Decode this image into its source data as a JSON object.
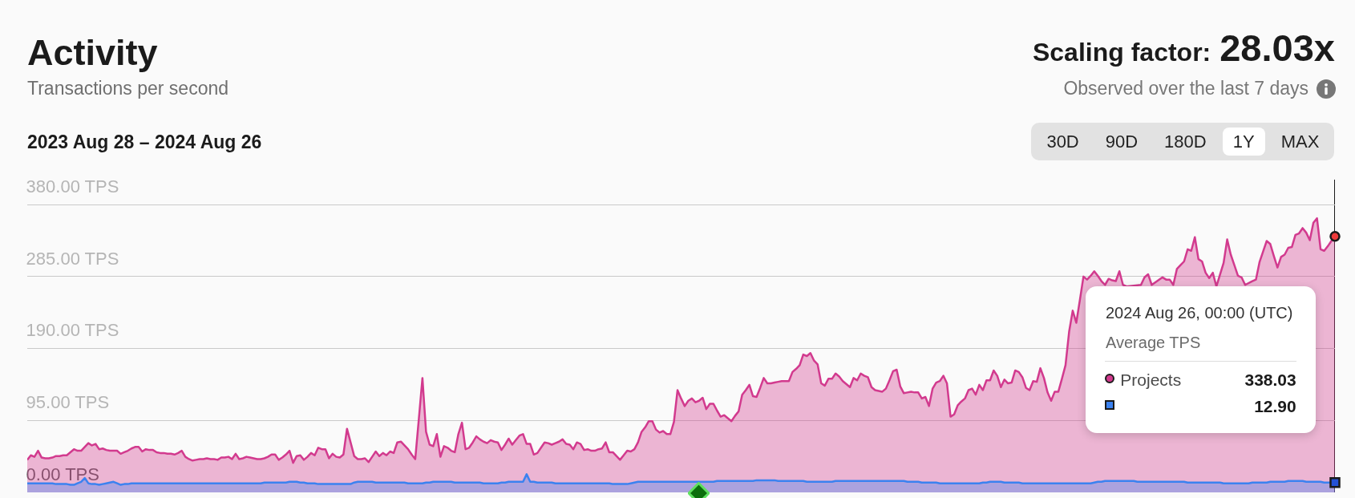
{
  "chart_data": {
    "type": "area",
    "title": "Activity",
    "subtitle": "Transactions per second",
    "annotations": [
      "2023 Aug 28 – 2024 Aug 26",
      "Scaling factor:",
      "28.03x",
      "Observed over the last 7 days",
      "30D",
      "90D",
      "180D",
      "1Y",
      "MAX",
      "2024 Aug 26, 00:00 (UTC)",
      "338.03",
      "12.90"
    ],
    "legend_title": "Average TPS",
    "categories": [
      null,
      null,
      null,
      null,
      null,
      null,
      null,
      null,
      null,
      null,
      null,
      null,
      null,
      null,
      null,
      null,
      null,
      null,
      null,
      null,
      null,
      null,
      null,
      null,
      null,
      null,
      null,
      null,
      null,
      null,
      null,
      null,
      null,
      null,
      null,
      null,
      null,
      null,
      null,
      null,
      null,
      null,
      null,
      null,
      null,
      null,
      null,
      null,
      null,
      null,
      null,
      null,
      null,
      null,
      null,
      null,
      null,
      null,
      null,
      null,
      null,
      null,
      null,
      null,
      null,
      null,
      null,
      null,
      null,
      null,
      null,
      null,
      null,
      null,
      null,
      null,
      null,
      null,
      null,
      null,
      null,
      null,
      null,
      null,
      null,
      null,
      null,
      null,
      null,
      null,
      null,
      null,
      null,
      null,
      null,
      null,
      null,
      null,
      null,
      null,
      null,
      null,
      null,
      null,
      null,
      null,
      null,
      null,
      null,
      null,
      null,
      null,
      null,
      null,
      null,
      null,
      null,
      null,
      null,
      null,
      null,
      null,
      null,
      null,
      null,
      null,
      null,
      null,
      null,
      null,
      null,
      null,
      null,
      null,
      null,
      null,
      null,
      null,
      null,
      null,
      null,
      null,
      null,
      null,
      null,
      null,
      null,
      null,
      null,
      null,
      null,
      null,
      null,
      null,
      null,
      null,
      null,
      null,
      null,
      null,
      null,
      null,
      null,
      null,
      null,
      null,
      null,
      null,
      null,
      null,
      null,
      null,
      null,
      null,
      null,
      null,
      null,
      null,
      null,
      null,
      null,
      null,
      null,
      null,
      null,
      null,
      null,
      null,
      null,
      null,
      null,
      null,
      null,
      null,
      null,
      null,
      null,
      null,
      null,
      null,
      null,
      null,
      null,
      null,
      null,
      null,
      null,
      null,
      null,
      null,
      null,
      null,
      null,
      null,
      null,
      null,
      null,
      null,
      null,
      null,
      null,
      null,
      null,
      null,
      null,
      null,
      null,
      null,
      null,
      null,
      null,
      null,
      null,
      null,
      null,
      null,
      null,
      null,
      null,
      null,
      null,
      null,
      null,
      null,
      null,
      null,
      null,
      null,
      null,
      null,
      null,
      null,
      null,
      null,
      null,
      null,
      null,
      null,
      null,
      null,
      null,
      null,
      null,
      null,
      null,
      null,
      null,
      null,
      null,
      null,
      null,
      null,
      null,
      null,
      null,
      null,
      null,
      null,
      null,
      null,
      null,
      null,
      null,
      null,
      null,
      null,
      null,
      null,
      null,
      null,
      null,
      null,
      null,
      null,
      null,
      null,
      null,
      null,
      null,
      null,
      null,
      null,
      null,
      null,
      null,
      null,
      null,
      null,
      null,
      null,
      null,
      null,
      null,
      null,
      null,
      null,
      null,
      null,
      null,
      null,
      null,
      null,
      null,
      null,
      null,
      null,
      null,
      null,
      null,
      null,
      null,
      null,
      null,
      null,
      null,
      null,
      null,
      null,
      null,
      null,
      null,
      null,
      null,
      null,
      null,
      null,
      null,
      null,
      null,
      null,
      null,
      null,
      null,
      null,
      null,
      null,
      null,
      null,
      null,
      null,
      null,
      null,
      null,
      null,
      null
    ],
    "series": [
      {
        "name": "Projects",
        "color": "#d23a8e",
        "values": [
          43,
          49,
          47,
          55,
          46,
          45,
          45,
          46,
          48,
          48,
          49,
          49,
          53,
          57,
          55,
          55,
          60,
          65,
          62,
          64,
          57,
          58,
          56,
          55,
          55,
          55,
          51,
          53,
          55,
          58,
          60,
          60,
          54,
          57,
          56,
          56,
          53,
          52,
          52,
          51,
          51,
          50,
          52,
          55,
          47,
          44,
          42,
          43,
          44,
          44,
          45,
          44,
          44,
          43,
          46,
          46,
          47,
          44,
          51,
          44,
          45,
          47,
          46,
          45,
          44,
          44,
          45,
          47,
          50,
          50,
          43,
          46,
          50,
          55,
          39,
          48,
          49,
          43,
          47,
          52,
          49,
          59,
          57,
          57,
          45,
          51,
          47,
          46,
          50,
          84,
          66,
          48,
          44,
          44,
          45,
          40,
          47,
          54,
          48,
          52,
          49,
          54,
          52,
          66,
          67,
          62,
          57,
          50,
          44,
          97,
          151,
          80,
          63,
          61,
          77,
          47,
          61,
          59,
          55,
          53,
          77,
          92,
          57,
          59,
          66,
          74,
          70,
          67,
          65,
          69,
          67,
          66,
          56,
          63,
          71,
          63,
          69,
          75,
          77,
          64,
          64,
          50,
          52,
          59,
          66,
          65,
          63,
          65,
          67,
          70,
          64,
          63,
          57,
          66,
          64,
          56,
          57,
          55,
          55,
          57,
          58,
          66,
          53,
          53,
          48,
          43,
          49,
          55,
          54,
          57,
          66,
          80,
          86,
          94,
          94,
          83,
          79,
          81,
          77,
          77,
          93,
          135,
          124,
          114,
          121,
          124,
          119,
          121,
          125,
          110,
          117,
          117,
          108,
          100,
          102,
          98,
          94,
          101,
          107,
          129,
          135,
          142,
          127,
          126,
          138,
          151,
          144,
          144,
          145,
          146,
          147,
          147,
          147,
          159,
          163,
          168,
          182,
          180,
          184,
          174,
          169,
          144,
          141,
          150,
          150,
          157,
          153,
          147,
          143,
          139,
          151,
          148,
          157,
          154,
          152,
          139,
          135,
          134,
          133,
          137,
          148,
          160,
          162,
          140,
          131,
          132,
          133,
          132,
          132,
          124,
          126,
          114,
          137,
          145,
          147,
          154,
          144,
          100,
          103,
          115,
          120,
          124,
          135,
          137,
          129,
          142,
          135,
          148,
          148,
          161,
          154,
          139,
          149,
          144,
          145,
          161,
          159,
          152,
          138,
          135,
          147,
          146,
          164,
          151,
          132,
          121,
          133,
          133,
          150,
          168,
          212,
          240,
          224,
          254,
          285,
          281,
          286,
          292,
          286,
          279,
          274,
          282,
          280,
          279,
          292,
          274,
          272,
          null,
          null,
          null,
          274,
          284,
          288,
          274,
          null,
          null,
          284,
          281,
          281,
          274,
          295,
          300,
          305,
          321,
          319,
          337,
          308,
          305,
          290,
          283,
          290,
          272,
          null,
          303,
          334,
          314,
          300,
          286,
          284,
          274,
          null,
          279,
          281,
          304,
          318,
          332,
          328,
          312,
          297,
          311,
          314,
          323,
          324,
          340,
          342,
          349,
          343,
          333,
          356,
          362,
          321,
          319,
          325,
          332,
          338.03
        ]
      },
      {
        "color": "#3b82f0",
        "values": [
          12,
          12,
          12,
          12,
          12,
          12,
          12,
          12,
          11,
          11,
          11,
          11,
          10,
          10,
          12,
          14,
          19,
          12,
          11,
          11,
          10,
          11,
          12,
          13,
          14,
          12,
          10,
          11,
          11,
          12,
          12,
          12,
          12,
          12,
          12,
          12,
          12,
          12,
          12,
          12,
          12,
          12,
          12,
          12,
          12,
          12,
          12,
          12,
          12,
          12,
          12,
          12,
          12,
          12,
          12,
          12,
          12,
          12,
          12,
          12,
          12,
          12,
          12,
          12,
          12,
          12,
          13,
          13,
          13,
          13,
          13,
          13,
          13,
          14,
          14,
          14,
          13,
          13,
          12,
          12,
          12,
          11,
          11,
          11,
          11,
          11,
          11,
          11,
          11,
          11,
          11,
          13,
          14,
          14,
          14,
          14,
          14,
          13,
          13,
          13,
          13,
          13,
          13,
          13,
          13,
          13,
          12,
          12,
          12,
          12,
          12,
          13,
          13,
          14,
          14,
          14,
          14,
          14,
          14,
          13,
          13,
          13,
          13,
          13,
          13,
          13,
          13,
          12,
          12,
          12,
          12,
          12,
          13,
          13,
          14,
          14,
          14,
          14,
          14,
          24,
          14,
          14,
          13,
          13,
          13,
          13,
          13,
          12,
          12,
          12,
          12,
          12,
          12,
          12,
          12,
          12,
          12,
          12,
          12,
          12,
          12,
          12,
          12,
          11,
          11,
          11,
          11,
          11,
          12,
          13,
          14,
          14,
          14,
          14,
          14,
          14,
          14,
          14,
          14,
          14,
          14,
          14,
          14,
          14,
          14,
          14,
          14,
          14,
          14,
          14,
          14,
          14,
          15,
          15,
          15,
          15,
          15,
          15,
          15,
          15,
          15,
          15,
          15,
          16,
          16,
          16,
          16,
          16,
          16,
          15,
          15,
          15,
          15,
          15,
          15,
          15,
          15,
          14,
          14,
          14,
          14,
          14,
          14,
          14,
          14,
          15,
          15,
          15,
          15,
          15,
          15,
          15,
          15,
          15,
          15,
          15,
          15,
          15,
          15,
          15,
          15,
          15,
          15,
          15,
          15,
          14,
          14,
          14,
          14,
          13,
          13,
          13,
          13,
          13,
          12,
          12,
          12,
          12,
          12,
          12,
          12,
          12,
          12,
          12,
          12,
          12,
          13,
          13,
          14,
          14,
          14,
          14,
          13,
          13,
          13,
          13,
          13,
          12,
          12,
          12,
          12,
          12,
          12,
          12,
          12,
          12,
          12,
          12,
          12,
          12,
          12,
          12,
          12,
          12,
          12,
          12,
          12,
          13,
          14,
          14,
          15,
          15,
          15,
          15,
          15,
          15,
          15,
          15,
          15,
          14,
          14,
          14,
          14,
          14,
          14,
          14,
          14,
          14,
          14,
          14,
          14,
          14,
          14,
          13,
          13,
          13,
          13,
          13,
          13,
          13,
          13,
          13,
          13,
          12,
          12,
          12,
          12,
          12,
          12,
          12,
          12,
          13,
          13,
          13,
          13,
          13,
          14,
          14,
          14,
          14,
          14,
          15,
          15,
          15,
          15,
          15,
          14,
          14,
          14,
          14,
          14,
          13,
          13,
          13,
          12.9
        ]
      },
      {
        "type": "scatter",
        "color": "#ee3b3b",
        "marker": "circle",
        "values": [
          null,
          null,
          null,
          null,
          null,
          null,
          null,
          null,
          null,
          null,
          null,
          null,
          null,
          null,
          null,
          null,
          null,
          null,
          null,
          null,
          null,
          null,
          null,
          null,
          null,
          null,
          null,
          null,
          null,
          null,
          null,
          null,
          null,
          null,
          null,
          null,
          null,
          null,
          null,
          null,
          null,
          null,
          null,
          null,
          null,
          null,
          null,
          null,
          null,
          null,
          null,
          null,
          null,
          null,
          null,
          null,
          null,
          null,
          null,
          null,
          null,
          null,
          null,
          null,
          null,
          null,
          null,
          null,
          null,
          null,
          null,
          null,
          null,
          null,
          null,
          null,
          null,
          null,
          null,
          null,
          null,
          null,
          null,
          null,
          null,
          null,
          null,
          null,
          null,
          null,
          null,
          null,
          null,
          null,
          null,
          null,
          null,
          null,
          null,
          null,
          null,
          null,
          null,
          null,
          null,
          null,
          null,
          null,
          null,
          null,
          null,
          null,
          null,
          null,
          null,
          null,
          null,
          null,
          null,
          null,
          null,
          null,
          null,
          null,
          null,
          null,
          null,
          null,
          null,
          null,
          null,
          null,
          null,
          null,
          null,
          null,
          null,
          null,
          null,
          null,
          null,
          null,
          null,
          null,
          null,
          null,
          null,
          null,
          null,
          null,
          null,
          null,
          null,
          null,
          null,
          null,
          null,
          null,
          null,
          null,
          null,
          null,
          null,
          null,
          null,
          null,
          null,
          null,
          null,
          null,
          null,
          null,
          null,
          null,
          null,
          null,
          null,
          null,
          null,
          null,
          null,
          null,
          null,
          null,
          null,
          null,
          null,
          null,
          null,
          null,
          null,
          null,
          null,
          null,
          null,
          null,
          null,
          null,
          null,
          null,
          null,
          null,
          null,
          null,
          null,
          null,
          null,
          null,
          null,
          null,
          null,
          null,
          null,
          null,
          null,
          null,
          null,
          null,
          null,
          null,
          null,
          null,
          null,
          null,
          null,
          null,
          null,
          null,
          null,
          null,
          null,
          null,
          null,
          null,
          null,
          null,
          null,
          null,
          null,
          null,
          null,
          null,
          null,
          null,
          null,
          null,
          null,
          null,
          null,
          null,
          null,
          null,
          null,
          null,
          null,
          null,
          null,
          null,
          null,
          null,
          null,
          null,
          null,
          null,
          null,
          null,
          null,
          null,
          null,
          null,
          null,
          null,
          null,
          null,
          null,
          null,
          null,
          null,
          null,
          null,
          null,
          null,
          null,
          null,
          null,
          null,
          null,
          null,
          null,
          null,
          null,
          null,
          null,
          null,
          null,
          null,
          null,
          null,
          null,
          null,
          null,
          null,
          null,
          null,
          null,
          null,
          null,
          null,
          null,
          null,
          null,
          null,
          null,
          null,
          null,
          null,
          null,
          null,
          null,
          null,
          null,
          null,
          null,
          null,
          null,
          null,
          null,
          null,
          null,
          null,
          null,
          null,
          null,
          null,
          null,
          null,
          null,
          null,
          null,
          null,
          null,
          null,
          null,
          null,
          null,
          null,
          null,
          null,
          null,
          null,
          null,
          null,
          null,
          null,
          null,
          null,
          null,
          null,
          null,
          null,
          null,
          null,
          null,
          null,
          338.03
        ]
      },
      {
        "type": "scatter",
        "color": "#2451d6",
        "marker": "square",
        "values": [
          null,
          null,
          null,
          null,
          null,
          null,
          null,
          null,
          null,
          null,
          null,
          null,
          null,
          null,
          null,
          null,
          null,
          null,
          null,
          null,
          null,
          null,
          null,
          null,
          null,
          null,
          null,
          null,
          null,
          null,
          null,
          null,
          null,
          null,
          null,
          null,
          null,
          null,
          null,
          null,
          null,
          null,
          null,
          null,
          null,
          null,
          null,
          null,
          null,
          null,
          null,
          null,
          null,
          null,
          null,
          null,
          null,
          null,
          null,
          null,
          null,
          null,
          null,
          null,
          null,
          null,
          null,
          null,
          null,
          null,
          null,
          null,
          null,
          null,
          null,
          null,
          null,
          null,
          null,
          null,
          null,
          null,
          null,
          null,
          null,
          null,
          null,
          null,
          null,
          null,
          null,
          null,
          null,
          null,
          null,
          null,
          null,
          null,
          null,
          null,
          null,
          null,
          null,
          null,
          null,
          null,
          null,
          null,
          null,
          null,
          null,
          null,
          null,
          null,
          null,
          null,
          null,
          null,
          null,
          null,
          null,
          null,
          null,
          null,
          null,
          null,
          null,
          null,
          null,
          null,
          null,
          null,
          null,
          null,
          null,
          null,
          null,
          null,
          null,
          null,
          null,
          null,
          null,
          null,
          null,
          null,
          null,
          null,
          null,
          null,
          null,
          null,
          null,
          null,
          null,
          null,
          null,
          null,
          null,
          null,
          null,
          null,
          null,
          null,
          null,
          null,
          null,
          null,
          null,
          null,
          null,
          null,
          null,
          null,
          null,
          null,
          null,
          null,
          null,
          null,
          null,
          null,
          null,
          null,
          null,
          null,
          null,
          null,
          null,
          null,
          null,
          null,
          null,
          null,
          null,
          null,
          null,
          null,
          null,
          null,
          null,
          null,
          null,
          null,
          null,
          null,
          null,
          null,
          null,
          null,
          null,
          null,
          null,
          null,
          null,
          null,
          null,
          null,
          null,
          null,
          null,
          null,
          null,
          null,
          null,
          null,
          null,
          null,
          null,
          null,
          null,
          null,
          null,
          null,
          null,
          null,
          null,
          null,
          null,
          null,
          null,
          null,
          null,
          null,
          null,
          null,
          null,
          null,
          null,
          null,
          null,
          null,
          null,
          null,
          null,
          null,
          null,
          null,
          null,
          null,
          null,
          null,
          null,
          null,
          null,
          null,
          null,
          null,
          null,
          null,
          null,
          null,
          null,
          null,
          null,
          null,
          null,
          null,
          null,
          null,
          null,
          null,
          null,
          null,
          null,
          null,
          null,
          null,
          null,
          null,
          null,
          null,
          null,
          null,
          null,
          null,
          null,
          null,
          null,
          null,
          null,
          null,
          null,
          null,
          null,
          null,
          null,
          null,
          null,
          null,
          null,
          null,
          null,
          null,
          null,
          null,
          null,
          null,
          null,
          null,
          null,
          null,
          null,
          null,
          null,
          null,
          null,
          null,
          null,
          null,
          null,
          null,
          null,
          null,
          null,
          null,
          null,
          null,
          null,
          null,
          null,
          null,
          null,
          null,
          null,
          null,
          null,
          null,
          null,
          null,
          null,
          null,
          null,
          null,
          null,
          null,
          null,
          null,
          null,
          null,
          null,
          null,
          null,
          null,
          12.9
        ]
      }
    ],
    "ylim": [
      0,
      413
    ],
    "yticks": [
      {
        "value": 0,
        "label": "0.00 TPS"
      },
      {
        "value": 95,
        "label": "95.00 TPS"
      },
      {
        "value": 190,
        "label": "190.00 TPS"
      },
      {
        "value": 285,
        "label": "285.00 TPS"
      },
      {
        "value": 380,
        "label": "380.00 TPS"
      }
    ],
    "grid": "y",
    "legend": "right",
    "tick_labels": "y"
  }
}
